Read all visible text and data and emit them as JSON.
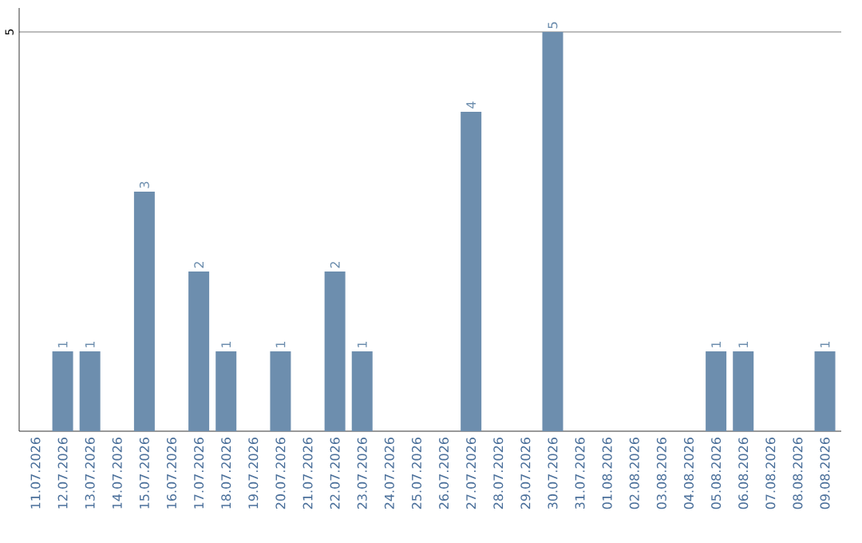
{
  "chart_data": {
    "type": "bar",
    "categories": [
      "11.07.2026",
      "12.07.2026",
      "13.07.2026",
      "14.07.2026",
      "15.07.2026",
      "16.07.2026",
      "17.07.2026",
      "18.07.2026",
      "19.07.2026",
      "20.07.2026",
      "21.07.2026",
      "22.07.2026",
      "23.07.2026",
      "24.07.2026",
      "25.07.2026",
      "26.07.2026",
      "27.07.2026",
      "28.07.2026",
      "29.07.2026",
      "30.07.2026",
      "31.07.2026",
      "01.08.2026",
      "02.08.2026",
      "03.08.2026",
      "04.08.2026",
      "05.08.2026",
      "06.08.2026",
      "07.08.2026",
      "08.08.2026",
      "09.08.2026"
    ],
    "values": [
      0,
      1,
      1,
      0,
      3,
      0,
      2,
      1,
      0,
      1,
      0,
      2,
      1,
      0,
      0,
      0,
      4,
      0,
      0,
      5,
      0,
      0,
      0,
      0,
      0,
      1,
      1,
      0,
      0,
      1
    ],
    "value_labels": [
      null,
      "1",
      "1",
      null,
      "3",
      null,
      "2",
      "1",
      null,
      "1",
      null,
      "2",
      "1",
      null,
      null,
      null,
      "4",
      null,
      null,
      "5",
      null,
      null,
      null,
      null,
      null,
      "1",
      "1",
      null,
      null,
      "1"
    ],
    "color": "#6d8eae",
    "ylim": [
      0,
      5.3
    ],
    "yticks": [
      5
    ],
    "grid": "y"
  }
}
